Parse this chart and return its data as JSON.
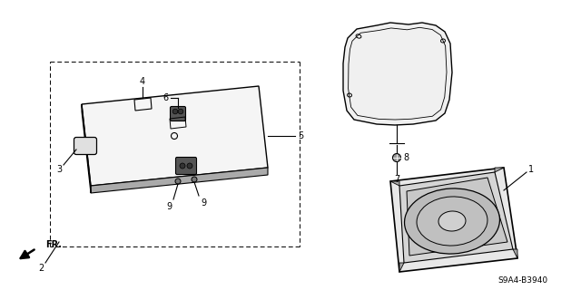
{
  "diagram_code": "S9A4-B3940",
  "bg_color": "#ffffff",
  "line_color": "#000000",
  "gray_light": "#d0d0d0",
  "gray_mid": "#888888",
  "gray_dark": "#444444"
}
